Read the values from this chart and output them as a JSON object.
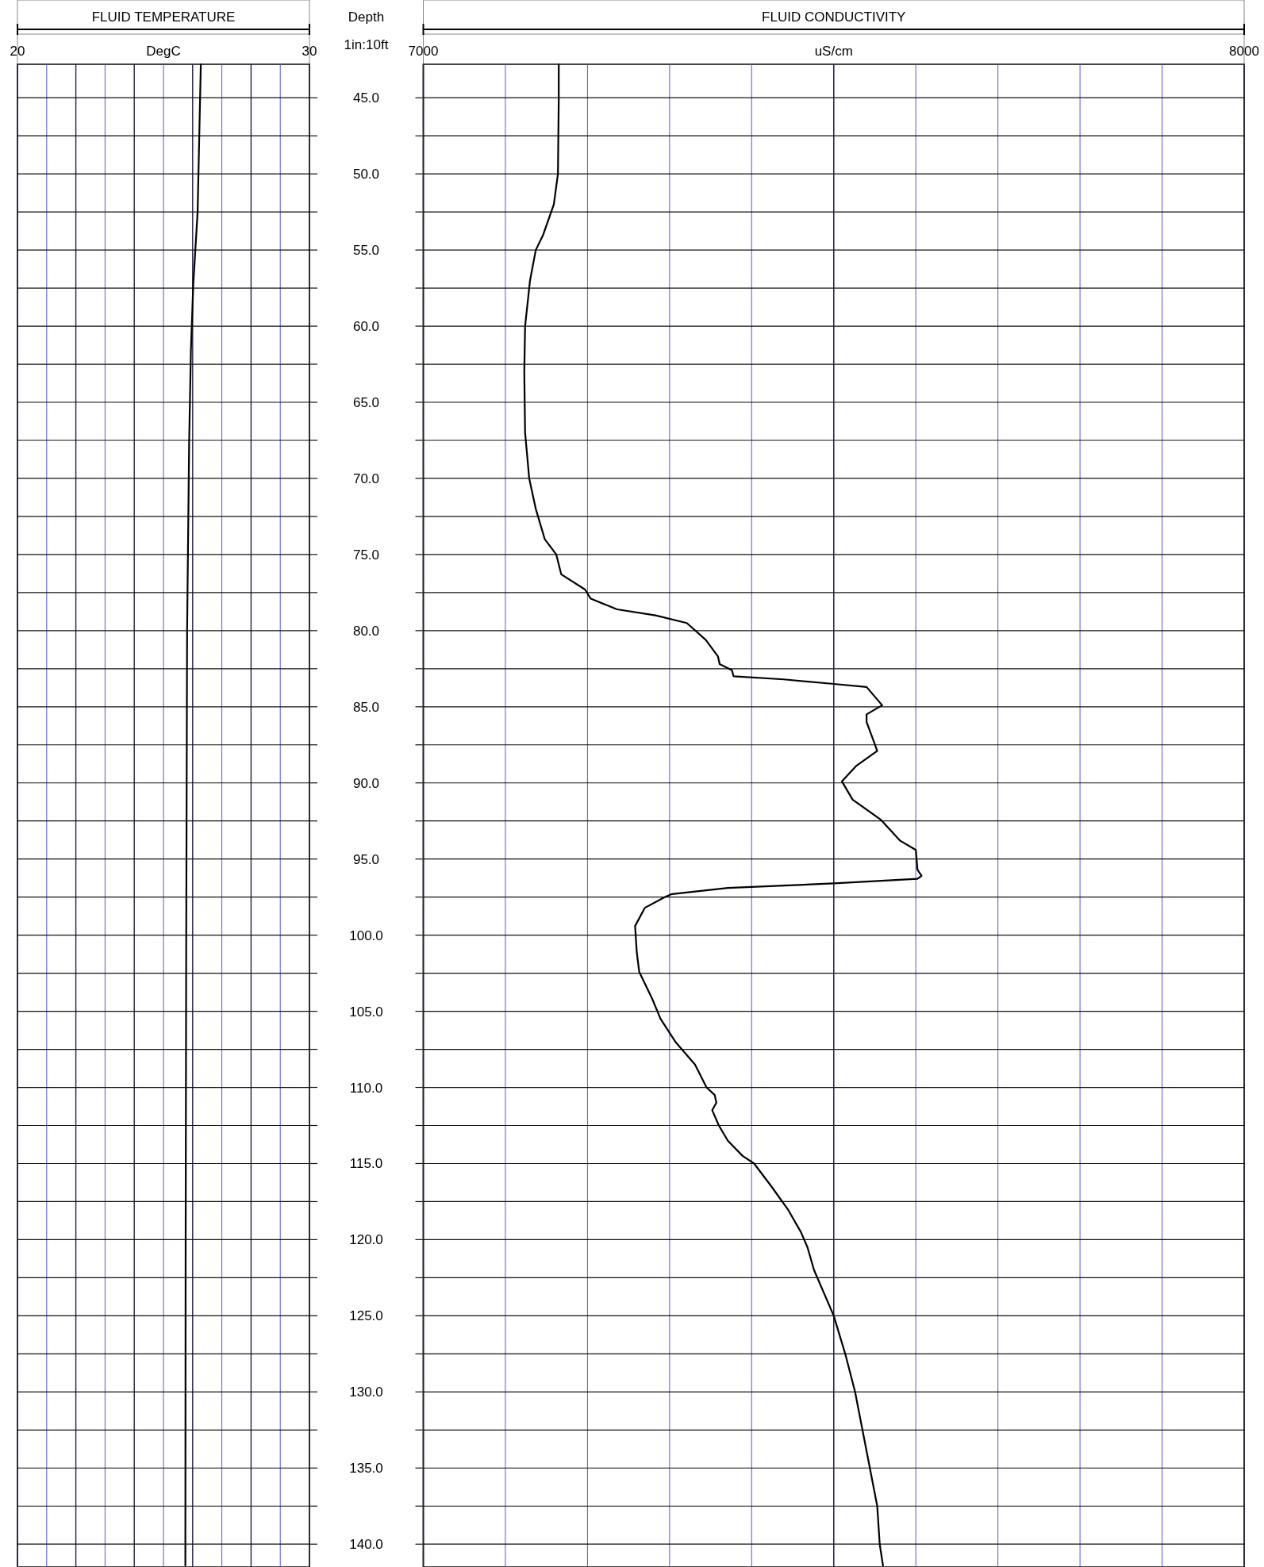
{
  "chart_data": [
    {
      "type": "line",
      "title": "FLUID TEMPERATURE",
      "xlabel": "DegC",
      "ylabel": "Depth",
      "annotations": [
        "1in:10ft"
      ],
      "grid": true,
      "xlim": [
        20,
        30
      ],
      "ylim": [
        141.5,
        42.8
      ],
      "xticks": [
        20,
        {
          "value": 21,
          "label": null
        },
        {
          "value": 22,
          "label": null
        },
        {
          "value": 23,
          "label": null
        },
        {
          "value": 24,
          "label": null
        },
        {
          "value": 25,
          "label": null
        },
        {
          "value": 26,
          "label": null
        },
        {
          "value": 27,
          "label": null
        },
        {
          "value": 28,
          "label": null
        },
        {
          "value": 29,
          "label": null
        },
        30
      ],
      "yticks": [
        {
          "value": 45,
          "label": "45.0"
        },
        {
          "value": 47.5,
          "label": null
        },
        {
          "value": 50,
          "label": "50.0"
        },
        {
          "value": 52.5,
          "label": null
        },
        {
          "value": 55,
          "label": "55.0"
        },
        {
          "value": 57.5,
          "label": null
        },
        {
          "value": 60,
          "label": "60.0"
        },
        {
          "value": 62.5,
          "label": null
        },
        {
          "value": 65,
          "label": "65.0"
        },
        {
          "value": 67.5,
          "label": null
        },
        {
          "value": 70,
          "label": "70.0"
        },
        {
          "value": 72.5,
          "label": null
        },
        {
          "value": 75,
          "label": "75.0"
        },
        {
          "value": 77.5,
          "label": null
        },
        {
          "value": 80,
          "label": "80.0"
        },
        {
          "value": 82.5,
          "label": null
        },
        {
          "value": 85,
          "label": "85.0"
        },
        {
          "value": 87.5,
          "label": null
        },
        {
          "value": 90,
          "label": "90.0"
        },
        {
          "value": 92.5,
          "label": null
        },
        {
          "value": 95,
          "label": "95.0"
        },
        {
          "value": 97.5,
          "label": null
        },
        {
          "value": 100,
          "label": "100.0"
        },
        {
          "value": 102.5,
          "label": null
        },
        {
          "value": 105,
          "label": "105.0"
        },
        {
          "value": 107.5,
          "label": null
        },
        {
          "value": 110,
          "label": "110.0"
        },
        {
          "value": 112.5,
          "label": null
        },
        {
          "value": 115,
          "label": "115.0"
        },
        {
          "value": 117.5,
          "label": null
        },
        {
          "value": 120,
          "label": "120.0"
        },
        {
          "value": 122.5,
          "label": null
        },
        {
          "value": 125,
          "label": "125.0"
        },
        {
          "value": 127.5,
          "label": null
        },
        {
          "value": 130,
          "label": "130.0"
        },
        {
          "value": 132.5,
          "label": null
        },
        {
          "value": 135,
          "label": "135.0"
        },
        {
          "value": 137.5,
          "label": null
        },
        {
          "value": 140,
          "label": "140.0"
        }
      ],
      "series": [
        {
          "color": "#000000",
          "x": [
            26.28,
            26.17,
            26.02,
            25.94,
            25.88,
            25.81,
            25.78,
            25.76,
            25.75
          ],
          "values": [
            42.8,
            52.5,
            57.3,
            61.6,
            67.6,
            80,
            100,
            120,
            141.4
          ]
        }
      ]
    },
    {
      "type": "line",
      "title": "FLUID CONDUCTIVITY",
      "xlabel": "uS/cm",
      "grid": true,
      "ref_lines": [
        {
          "axis": "x",
          "value": 7500,
          "color": "#222244"
        }
      ],
      "tick_labels": "x",
      "xlim": [
        7000,
        8000
      ],
      "ylim": [
        141.5,
        42.8
      ],
      "xticks": [
        7000,
        {
          "value": 7100,
          "label": null
        },
        {
          "value": 7200,
          "label": null
        },
        {
          "value": 7300,
          "label": null
        },
        {
          "value": 7400,
          "label": null
        },
        {
          "value": 7500,
          "label": null
        },
        {
          "value": 7600,
          "label": null
        },
        {
          "value": 7700,
          "label": null
        },
        {
          "value": 7800,
          "label": null
        },
        {
          "value": 7900,
          "label": null
        },
        8000
      ],
      "yticks": [
        45,
        47.5,
        50,
        52.5,
        55,
        57.5,
        60,
        62.5,
        65,
        67.5,
        70,
        72.5,
        75,
        77.5,
        80,
        82.5,
        85,
        87.5,
        90,
        92.5,
        95,
        97.5,
        100,
        102.5,
        105,
        107.5,
        110,
        112.5,
        115,
        117.5,
        120,
        122.5,
        125,
        127.5,
        130,
        132.5,
        135,
        137.5,
        140
      ],
      "series": [
        {
          "color": "#000000",
          "x": [
            7165,
            7165,
            7164,
            7159,
            7146,
            7137,
            7130,
            7124,
            7123,
            7124,
            7129,
            7137,
            7148,
            7162,
            7168,
            7197,
            7204,
            7236,
            7283,
            7321,
            7344,
            7359,
            7361,
            7376,
            7378,
            7439,
            7500,
            7540,
            7559,
            7540,
            7540,
            7553,
            7527,
            7510,
            7523,
            7557,
            7581,
            7600,
            7602,
            7607,
            7602,
            7500,
            7371,
            7303,
            7294,
            7270,
            7258,
            7260,
            7263,
            7279,
            7289,
            7307,
            7331,
            7345,
            7355,
            7357,
            7352,
            7360,
            7371,
            7389,
            7403,
            7424,
            7444,
            7460,
            7468,
            7476,
            7500,
            7514,
            7526,
            7535,
            7544,
            7553,
            7556,
            7560
          ],
          "values": [
            42.8,
            45,
            50,
            52,
            54,
            55,
            57,
            60,
            63,
            67,
            70,
            72,
            74,
            75.0,
            76.3,
            77.3,
            77.9,
            78.6,
            79.0,
            79.5,
            80.6,
            81.7,
            82.2,
            82.6,
            83.0,
            83.2,
            83.5,
            83.7,
            84.9,
            85.5,
            86.0,
            87.9,
            88.9,
            89.9,
            91.1,
            92.4,
            93.8,
            94.4,
            95.7,
            96.1,
            96.3,
            96.6,
            96.9,
            97.3,
            97.5,
            98.2,
            99.4,
            101.1,
            102.4,
            104.2,
            105.5,
            107,
            108.5,
            110,
            110.5,
            111,
            111.5,
            112.5,
            113.5,
            114.5,
            115,
            116.5,
            118,
            119.5,
            120.5,
            122,
            125,
            127.5,
            130,
            132.5,
            135,
            137.5,
            140,
            141.4
          ]
        }
      ]
    }
  ]
}
